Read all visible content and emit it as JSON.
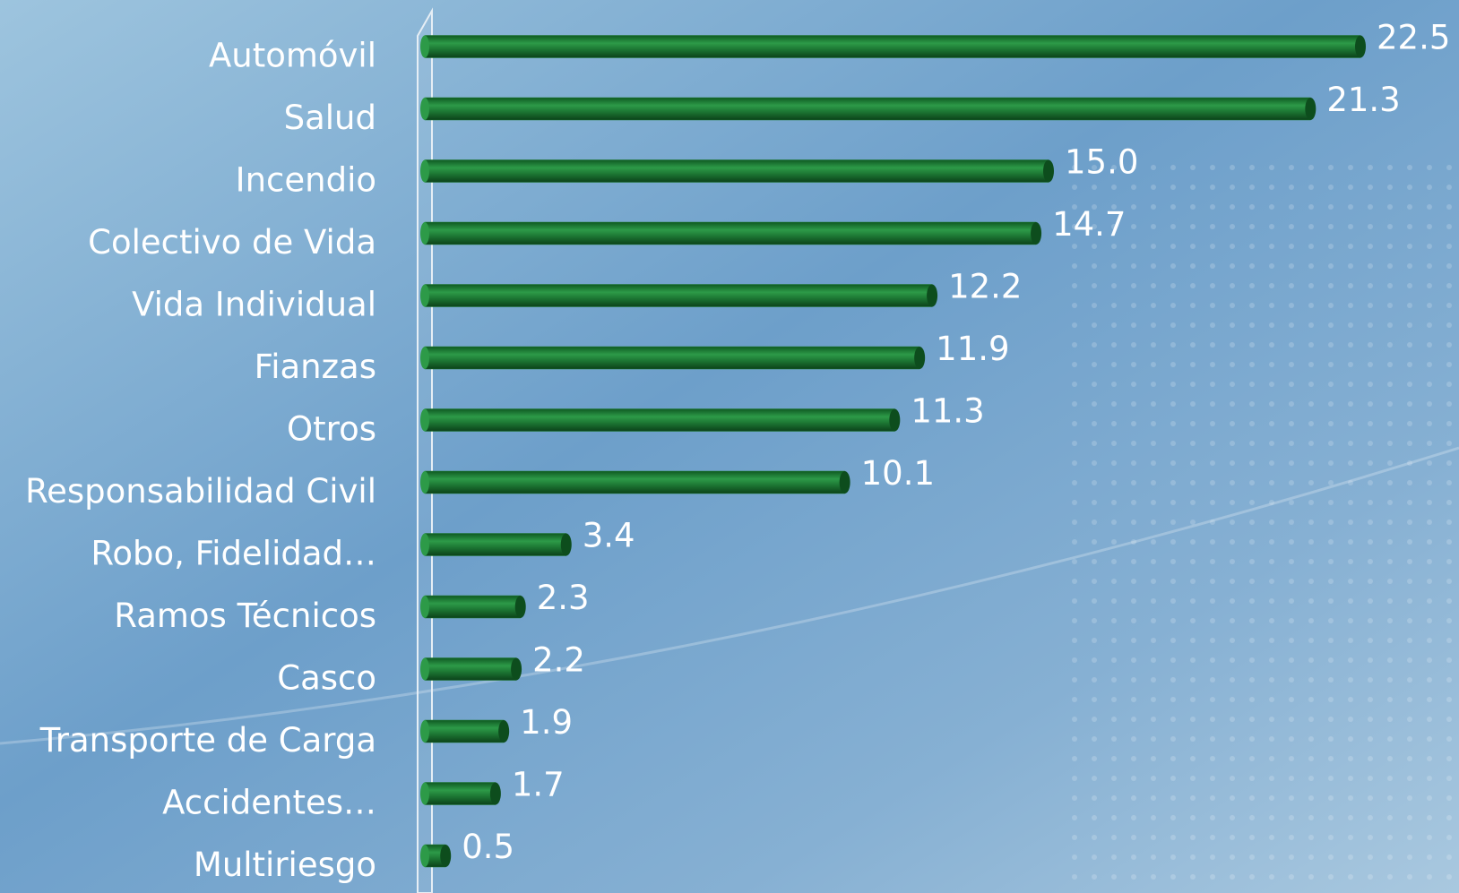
{
  "chart_data": {
    "type": "bar",
    "orientation": "horizontal",
    "categories": [
      "Automóvil",
      "Salud",
      "Incendio",
      "Colectivo de Vida",
      "Vida Individual",
      "Fianzas",
      "Otros",
      "Responsabilidad Civil",
      "Robo, Fidelidad…",
      "Ramos Técnicos",
      "Casco",
      "Transporte de Carga",
      "Accidentes…",
      "Multiriesgo"
    ],
    "values": [
      22.5,
      21.3,
      15.0,
      14.7,
      12.2,
      11.9,
      11.3,
      10.1,
      3.4,
      2.3,
      2.2,
      1.9,
      1.7,
      0.5
    ],
    "value_labels": [
      "22.5",
      "21.3",
      "15.0",
      "14.7",
      "12.2",
      "11.9",
      "11.3",
      "10.1",
      "3.4",
      "2.3",
      "2.2",
      "1.9",
      "1.7",
      "0.5"
    ],
    "color": "#1e7a35",
    "xlim": [
      0,
      22.5
    ]
  }
}
